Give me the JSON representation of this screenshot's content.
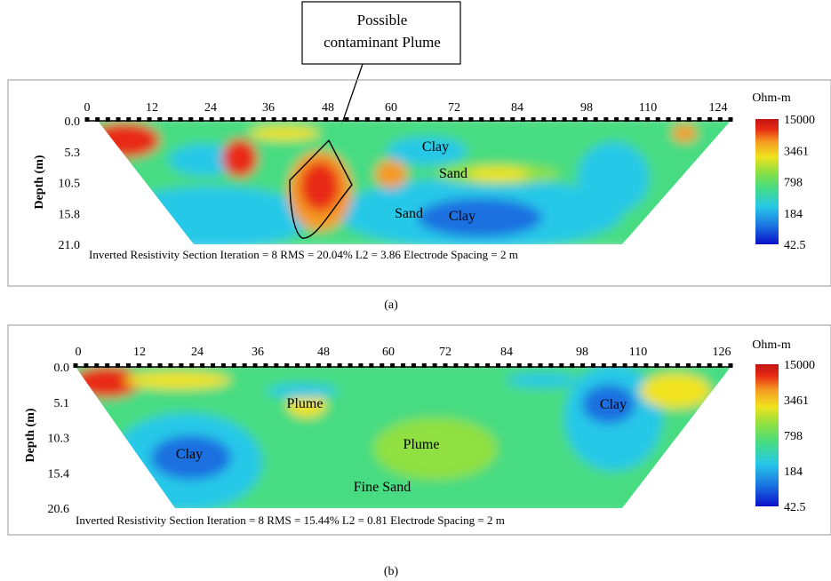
{
  "annotation": {
    "line1": "Possible",
    "line2": "contaminant Plume"
  },
  "chart_data": [
    {
      "type": "heatmap",
      "panel_label": "(a)",
      "x_ticks": [
        "0",
        "12",
        "24",
        "36",
        "48",
        "60",
        "72",
        "84",
        "98",
        "110",
        "124"
      ],
      "y_ticks": [
        "0.0",
        "5.3",
        "10.5",
        "15.8",
        "21.0"
      ],
      "ylabel": "Depth (m)",
      "ylim": [
        0,
        21.0
      ],
      "xlim": [
        0,
        124
      ],
      "colorbar_title": "Ohm-m",
      "colorbar_labels": [
        "15000",
        "3461",
        "798",
        "184",
        "42.5"
      ],
      "caption": "Inverted Resistivity Section  Iteration = 8  RMS = 20.04%  L2 = 3.86  Electrode Spacing = 2 m",
      "region_labels": [
        "Clay",
        "Sand",
        "Sand",
        "Clay"
      ]
    },
    {
      "type": "heatmap",
      "panel_label": "(b)",
      "x_ticks": [
        "0",
        "12",
        "24",
        "36",
        "48",
        "60",
        "72",
        "84",
        "98",
        "110",
        "126"
      ],
      "y_ticks": [
        "0.0",
        "5.1",
        "10.3",
        "15.4",
        "20.6"
      ],
      "ylabel": "Depth (m)",
      "ylim": [
        0,
        20.6
      ],
      "xlim": [
        0,
        126
      ],
      "colorbar_title": "Ohm-m",
      "colorbar_labels": [
        "15000",
        "3461",
        "798",
        "184",
        "42.5"
      ],
      "caption": "Inverted Resistivity Section  Iteration = 8  RMS = 15.44%  L2 = 0.81  Electrode Spacing = 2 m",
      "region_labels": [
        "Plume",
        "Clay",
        "Clay",
        "Plume",
        "Fine Sand"
      ]
    }
  ],
  "colors": {
    "scale": [
      "#0a10c8",
      "#1a6fe0",
      "#28c8e8",
      "#46dc82",
      "#8fe040",
      "#f0e21e",
      "#f59a22",
      "#e82a12",
      "#c01515"
    ]
  }
}
